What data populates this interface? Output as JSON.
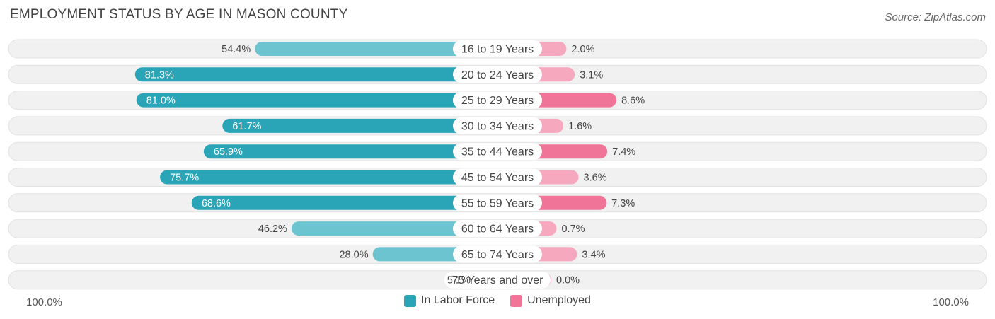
{
  "title": "EMPLOYMENT STATUS BY AGE IN MASON COUNTY",
  "source": "Source: ZipAtlas.com",
  "colors": {
    "labor_dark": "#2aa5b8",
    "labor_light": "#6cc4d0",
    "unemp_dark": "#f07498",
    "unemp_light": "#f6a8bf",
    "row_bg": "#f1f1f1"
  },
  "chart_data": {
    "type": "bar",
    "orientation": "horizontal-diverging",
    "categories": [
      "16 to 19 Years",
      "20 to 24 Years",
      "25 to 29 Years",
      "30 to 34 Years",
      "35 to 44 Years",
      "45 to 54 Years",
      "55 to 59 Years",
      "60 to 64 Years",
      "65 to 74 Years",
      "75 Years and over"
    ],
    "series": [
      {
        "name": "In Labor Force",
        "values": [
          54.4,
          81.3,
          81.0,
          61.7,
          65.9,
          75.7,
          68.6,
          46.2,
          28.0,
          5.1
        ],
        "labels": [
          "54.4%",
          "81.3%",
          "81.0%",
          "61.7%",
          "65.9%",
          "75.7%",
          "68.6%",
          "46.2%",
          "28.0%",
          "5.1%"
        ]
      },
      {
        "name": "Unemployed",
        "values": [
          2.0,
          3.1,
          8.6,
          1.6,
          7.4,
          3.6,
          7.3,
          0.7,
          3.4,
          0.0
        ],
        "labels": [
          "2.0%",
          "3.1%",
          "8.6%",
          "1.6%",
          "7.4%",
          "3.6%",
          "7.3%",
          "0.7%",
          "3.4%",
          "0.0%"
        ]
      }
    ],
    "xlim_left": [
      100,
      0
    ],
    "xlim_right": [
      0,
      100
    ],
    "axis_left_label": "100.0%",
    "axis_right_label": "100.0%",
    "legend_position": "bottom-center"
  }
}
